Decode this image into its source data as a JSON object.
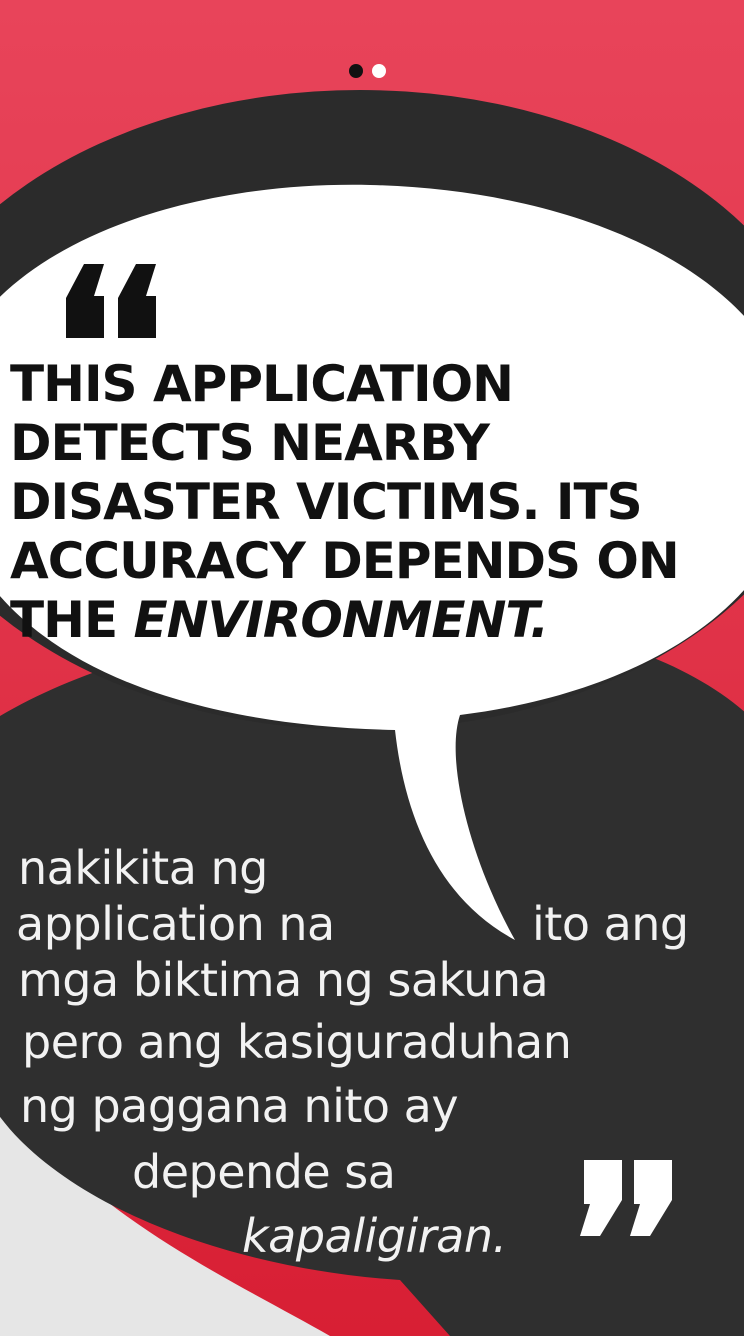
{
  "colors": {
    "background": "#e23b4c",
    "bubble_dark": "#2f2f2f",
    "bubble_light": "#ffffff",
    "text_dark": "#111111",
    "text_light": "#f2f2f2"
  },
  "pager": {
    "total": 2,
    "active_index": 0
  },
  "quote_english": {
    "lines": [
      "THIS APPLICATION",
      "DETECTS NEARBY",
      "DISASTER VICTIMS. ITS",
      "ACCURACY DEPENDS ON"
    ],
    "last_line_prefix": "THE ",
    "last_line_emphasis": "ENVIRONMENT."
  },
  "quote_tagalog": {
    "line1": "nakikita ng",
    "line2a": "application na",
    "line2b": "ito ang",
    "line3": "mga biktima ng sakuna",
    "line4": "pero ang kasiguraduhan",
    "line5": "ng paggana nito ay",
    "line6": "depende sa",
    "line7_emphasis": "kapaligiran."
  },
  "icons": {
    "open_quote": "open-quote-icon",
    "close_quote": "close-quote-icon"
  }
}
